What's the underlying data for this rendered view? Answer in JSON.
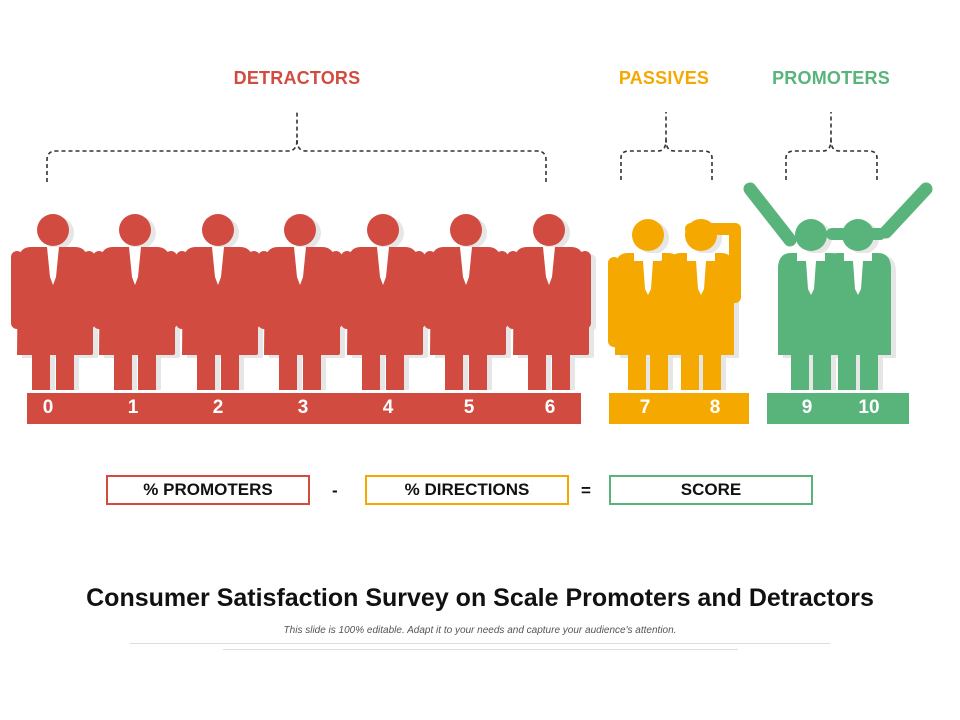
{
  "groups": {
    "detractors": {
      "label": "DETRACTORS",
      "color": "#D24B40",
      "scores": [
        "0",
        "1",
        "2",
        "3",
        "4",
        "5",
        "6"
      ]
    },
    "passives": {
      "label": "PASSIVES",
      "color": "#F5A800",
      "scores": [
        "7",
        "8"
      ]
    },
    "promoters": {
      "label": "PROMOTERS",
      "color": "#58B47B",
      "scores": [
        "9",
        "10"
      ]
    }
  },
  "formula": {
    "left": "% PROMOTERS",
    "minus": "-",
    "middle": "% DIRECTIONS",
    "equals": "=",
    "right": "SCORE"
  },
  "title": "Consumer Satisfaction Survey on Scale Promoters and Detractors",
  "subtitle": "This slide is 100% editable. Adapt it to your needs and capture your audience's attention."
}
